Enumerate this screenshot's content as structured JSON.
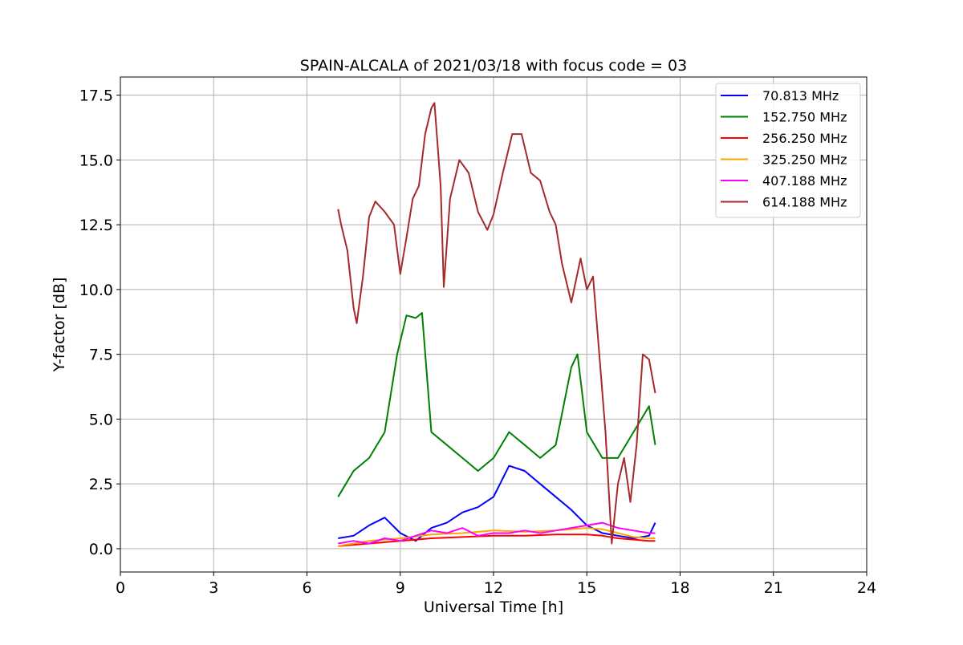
{
  "chart_data": {
    "type": "line",
    "title": "SPAIN-ALCALA of 2021/03/18 with focus code = 03",
    "xlabel": "Universal Time [h]",
    "ylabel": "Y-factor [dB]",
    "xlim": [
      0,
      24
    ],
    "ylim": [
      -0.9,
      18.2
    ],
    "xticks": [
      0,
      3,
      6,
      9,
      12,
      15,
      18,
      21,
      24
    ],
    "xtick_labels": [
      "0",
      "3",
      "6",
      "9",
      "12",
      "15",
      "18",
      "21",
      "24"
    ],
    "yticks": [
      0,
      2.5,
      5,
      7.5,
      10,
      12.5,
      15,
      17.5
    ],
    "ytick_labels": [
      "0.0",
      "2.5",
      "5.0",
      "7.5",
      "10.0",
      "12.5",
      "15.0",
      "17.5"
    ],
    "grid": true,
    "legend_position": "top-right",
    "series": [
      {
        "name": " 70.813 MHz",
        "color": "#0000ff",
        "x": [
          7.0,
          7.5,
          8.0,
          8.5,
          9.0,
          9.5,
          10.0,
          10.5,
          11.0,
          11.5,
          12.0,
          12.5,
          13.0,
          13.5,
          14.0,
          14.5,
          15.0,
          15.5,
          16.0,
          16.5,
          17.0,
          17.2
        ],
        "y": [
          0.4,
          0.5,
          0.9,
          1.2,
          0.6,
          0.3,
          0.8,
          1.0,
          1.4,
          1.6,
          2.0,
          3.2,
          3.0,
          2.5,
          2.0,
          1.5,
          0.9,
          0.6,
          0.5,
          0.4,
          0.5,
          1.0
        ]
      },
      {
        "name": "152.750 MHz",
        "color": "#008000",
        "x": [
          7.0,
          7.5,
          8.0,
          8.5,
          8.9,
          9.2,
          9.5,
          9.7,
          10.0,
          10.5,
          11.0,
          11.5,
          12.0,
          12.5,
          13.0,
          13.5,
          14.0,
          14.5,
          14.7,
          15.0,
          15.5,
          16.0,
          16.5,
          17.0,
          17.2
        ],
        "y": [
          2.0,
          3.0,
          3.5,
          4.5,
          7.5,
          9.0,
          8.9,
          9.1,
          4.5,
          4.0,
          3.5,
          3.0,
          3.5,
          4.5,
          4.0,
          3.5,
          4.0,
          7.0,
          7.5,
          4.5,
          3.5,
          3.5,
          4.5,
          5.5,
          4.0
        ]
      },
      {
        "name": "256.250 MHz",
        "color": "#ff0000",
        "x": [
          7.0,
          8.0,
          9.0,
          10.0,
          11.0,
          12.0,
          13.0,
          14.0,
          15.0,
          15.5,
          16.0,
          16.5,
          17.0,
          17.2
        ],
        "y": [
          0.1,
          0.2,
          0.3,
          0.4,
          0.45,
          0.5,
          0.5,
          0.55,
          0.55,
          0.5,
          0.4,
          0.35,
          0.3,
          0.3
        ]
      },
      {
        "name": "325.250 MHz",
        "color": "#ffa500",
        "x": [
          7.0,
          8.0,
          9.0,
          10.0,
          11.0,
          12.0,
          13.0,
          14.0,
          15.0,
          15.5,
          16.0,
          16.5,
          17.0,
          17.2
        ],
        "y": [
          0.1,
          0.3,
          0.4,
          0.55,
          0.6,
          0.7,
          0.65,
          0.7,
          0.8,
          0.75,
          0.6,
          0.45,
          0.4,
          0.4
        ]
      },
      {
        "name": "407.188 MHz",
        "color": "#ff00ff",
        "x": [
          7.0,
          7.5,
          8.0,
          8.5,
          9.0,
          9.5,
          10.0,
          10.5,
          11.0,
          11.5,
          12.0,
          12.5,
          13.0,
          13.5,
          14.0,
          14.5,
          15.0,
          15.5,
          16.0,
          16.5,
          17.0,
          17.2
        ],
        "y": [
          0.2,
          0.3,
          0.2,
          0.4,
          0.3,
          0.5,
          0.7,
          0.6,
          0.8,
          0.5,
          0.6,
          0.6,
          0.7,
          0.6,
          0.7,
          0.8,
          0.9,
          1.0,
          0.8,
          0.7,
          0.6,
          0.6
        ]
      },
      {
        "name": "614.188 MHz",
        "color": "#a52a2a",
        "x": [
          7.0,
          7.1,
          7.3,
          7.5,
          7.6,
          7.8,
          8.0,
          8.2,
          8.5,
          8.8,
          9.0,
          9.2,
          9.4,
          9.6,
          9.8,
          10.0,
          10.1,
          10.3,
          10.4,
          10.6,
          10.9,
          11.2,
          11.5,
          11.8,
          12.0,
          12.3,
          12.6,
          12.9,
          13.2,
          13.5,
          13.8,
          14.0,
          14.2,
          14.5,
          14.8,
          15.0,
          15.2,
          15.4,
          15.6,
          15.8,
          16.0,
          16.2,
          16.4,
          16.6,
          16.8,
          17.0,
          17.2
        ],
        "y": [
          13.1,
          12.5,
          11.5,
          9.3,
          8.7,
          10.5,
          12.8,
          13.4,
          13.0,
          12.5,
          10.6,
          12.0,
          13.5,
          14.0,
          16.0,
          17.0,
          17.2,
          14.0,
          10.1,
          13.5,
          15.0,
          14.5,
          13.0,
          12.3,
          12.9,
          14.5,
          16.0,
          16.0,
          14.5,
          14.2,
          13.0,
          12.5,
          11.0,
          9.5,
          11.2,
          10.0,
          10.5,
          7.5,
          4.5,
          0.2,
          2.5,
          3.5,
          1.8,
          4.0,
          7.5,
          7.3,
          6.0
        ]
      }
    ]
  }
}
